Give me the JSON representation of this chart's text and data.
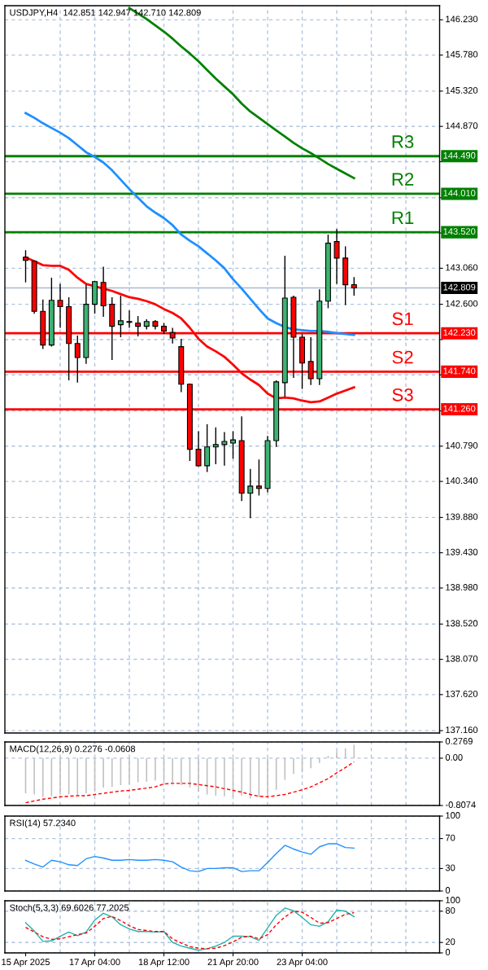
{
  "chart_data": [
    {
      "type": "candlestick",
      "title": "USDJPY,H4  142.851 142.947 142.710 142.809",
      "categories": [
        null,
        null,
        null,
        null,
        null,
        null,
        null,
        null,
        null,
        null,
        null,
        null,
        null,
        null,
        null,
        null,
        null,
        null,
        null,
        null,
        null,
        null,
        null,
        null,
        null,
        null,
        null,
        null,
        null,
        null,
        null,
        null,
        null,
        null,
        null,
        null,
        null,
        null,
        null
      ],
      "ohlc": [
        [
          143.2,
          143.29,
          142.88,
          143.16
        ],
        [
          143.15,
          143.16,
          142.48,
          142.51
        ],
        [
          142.51,
          142.66,
          142.03,
          142.08
        ],
        [
          142.08,
          142.94,
          142.06,
          142.65
        ],
        [
          142.65,
          142.86,
          142.3,
          142.57
        ],
        [
          142.57,
          142.69,
          141.63,
          142.1
        ],
        [
          142.1,
          142.2,
          141.6,
          141.92
        ],
        [
          141.92,
          142.85,
          141.84,
          142.6
        ],
        [
          142.6,
          142.9,
          142.48,
          142.89
        ],
        [
          142.88,
          143.08,
          142.44,
          142.58
        ],
        [
          142.6,
          142.69,
          141.89,
          142.32
        ],
        [
          142.34,
          142.71,
          142.18,
          142.39
        ],
        [
          142.37,
          142.52,
          142.3,
          142.38
        ],
        [
          142.36,
          142.45,
          142.19,
          142.32
        ],
        [
          142.32,
          142.41,
          142.28,
          142.38
        ],
        [
          142.38,
          142.4,
          142.28,
          142.32
        ],
        [
          142.32,
          142.36,
          142.22,
          142.26
        ],
        [
          142.24,
          142.3,
          142.1,
          142.17
        ],
        [
          142.06,
          142.16,
          141.48,
          141.58
        ],
        [
          141.58,
          141.59,
          140.6,
          140.75
        ],
        [
          140.75,
          140.98,
          140.53,
          140.54
        ],
        [
          140.54,
          141.07,
          140.46,
          140.78
        ],
        [
          140.78,
          141.03,
          140.56,
          140.81
        ],
        [
          140.81,
          140.97,
          140.54,
          140.85
        ],
        [
          140.83,
          140.98,
          140.63,
          140.87
        ],
        [
          140.86,
          141.17,
          140.09,
          140.19
        ],
        [
          140.19,
          140.5,
          139.87,
          140.28
        ],
        [
          140.28,
          140.62,
          140.16,
          140.25
        ],
        [
          140.25,
          140.92,
          140.2,
          140.86
        ],
        [
          140.86,
          141.63,
          140.78,
          141.61
        ],
        [
          141.6,
          143.22,
          141.42,
          142.68
        ],
        [
          142.69,
          142.71,
          141.66,
          142.18
        ],
        [
          142.18,
          142.22,
          141.52,
          141.85
        ],
        [
          141.87,
          142.18,
          141.57,
          141.65
        ],
        [
          141.65,
          142.79,
          141.57,
          142.64
        ],
        [
          142.64,
          143.49,
          142.55,
          143.38
        ],
        [
          143.4,
          143.56,
          142.86,
          143.19
        ],
        [
          143.19,
          143.34,
          142.59,
          142.85
        ],
        [
          142.851,
          142.947,
          142.71,
          142.809
        ]
      ],
      "colors": [
        "#ff0000",
        "#ff0000",
        "#ff0000",
        "#3cb371",
        "#ff0000",
        "#ff0000",
        "#ff0000",
        "#3cb371",
        "#3cb371",
        "#ff0000",
        "#ff0000",
        "#3cb371",
        "#3cb371",
        "#ff0000",
        "#3cb371",
        "#ff0000",
        "#ff0000",
        "#ff0000",
        "#ff0000",
        "#ff0000",
        "#ff0000",
        "#3cb371",
        "#3cb371",
        "#3cb371",
        "#3cb371",
        "#ff0000",
        "#3cb371",
        "#ff0000",
        "#3cb371",
        "#3cb371",
        "#3cb371",
        "#ff0000",
        "#ff0000",
        "#ff0000",
        "#3cb371",
        "#3cb371",
        "#ff0000",
        "#ff0000",
        "#ff0000"
      ],
      "series": [
        {
          "type": "line",
          "color": "#008000",
          "values": [
            null,
            null,
            null,
            null,
            null,
            null,
            null,
            null,
            null,
            null,
            null,
            null,
            146.38,
            146.31,
            146.24,
            146.16,
            146.08,
            145.99,
            145.89,
            145.8,
            145.7,
            145.59,
            145.48,
            145.38,
            145.28,
            145.16,
            145.06,
            144.98,
            144.9,
            144.82,
            144.74,
            144.66,
            144.59,
            144.53,
            144.46,
            144.39,
            144.33,
            144.27,
            144.21
          ]
        },
        {
          "type": "line",
          "color": "#1e90ff",
          "values": [
            145.04,
            144.98,
            144.91,
            144.85,
            144.79,
            144.72,
            144.63,
            144.54,
            144.48,
            144.41,
            144.31,
            144.19,
            144.07,
            143.96,
            143.85,
            143.77,
            143.7,
            143.61,
            143.49,
            143.41,
            143.34,
            143.25,
            143.16,
            143.06,
            142.92,
            142.8,
            142.67,
            142.54,
            142.42,
            142.36,
            142.31,
            142.28,
            142.27,
            142.26,
            142.26,
            142.25,
            142.23,
            142.22,
            142.21
          ]
        },
        {
          "type": "line",
          "color": "#ff0000",
          "values": [
            143.2,
            143.15,
            143.1,
            143.09,
            143.09,
            143.04,
            142.94,
            142.86,
            142.83,
            142.8,
            142.77,
            142.73,
            142.69,
            142.67,
            142.64,
            142.6,
            142.54,
            142.49,
            142.42,
            142.3,
            142.16,
            142.06,
            142.0,
            141.93,
            141.83,
            141.72,
            141.64,
            141.57,
            141.46,
            141.4,
            141.41,
            141.4,
            141.37,
            141.35,
            141.36,
            141.41,
            141.46,
            141.5,
            141.54
          ]
        }
      ],
      "ylim": [
        137.13,
        146.41
      ],
      "yticks": [
        {
          "value": 146.23,
          "label": "146.230"
        },
        {
          "value": 145.78,
          "label": "145.780"
        },
        {
          "value": 145.32,
          "label": "145.320"
        },
        {
          "value": 144.87,
          "label": "144.870"
        },
        {
          "value": 144.42,
          "label": null
        },
        {
          "value": 143.96,
          "label": null
        },
        {
          "value": 143.51,
          "label": null
        },
        {
          "value": 143.06,
          "label": "143.060"
        },
        {
          "value": 142.6,
          "label": "142.600"
        },
        {
          "value": 142.15,
          "label": null
        },
        {
          "value": 141.7,
          "label": null
        },
        {
          "value": 141.24,
          "label": null
        },
        {
          "value": 140.79,
          "label": "140.790"
        },
        {
          "value": 140.34,
          "label": "140.340"
        },
        {
          "value": 139.88,
          "label": "139.880"
        },
        {
          "value": 139.43,
          "label": "139.430"
        },
        {
          "value": 138.98,
          "label": "138.980"
        },
        {
          "value": 138.52,
          "label": "138.520"
        },
        {
          "value": 138.07,
          "label": "138.070"
        },
        {
          "value": 137.62,
          "label": "137.620"
        },
        {
          "value": 137.16,
          "label": "137.160"
        }
      ],
      "ref_lines": [
        {
          "axis": "y",
          "value": 144.49,
          "label": "144.490",
          "color": "#008000"
        },
        {
          "axis": "y",
          "value": 144.01,
          "label": "144.010",
          "color": "#008000"
        },
        {
          "axis": "y",
          "value": 143.52,
          "label": "143.520",
          "color": "#008000"
        },
        {
          "axis": "y",
          "value": 142.23,
          "label": "142.230",
          "color": "#ff0000"
        },
        {
          "axis": "y",
          "value": 141.74,
          "label": "141.740",
          "color": "#ff0000"
        },
        {
          "axis": "y",
          "value": 141.26,
          "label": "141.260",
          "color": "#ff0000"
        },
        {
          "axis": "y",
          "value": 142.809,
          "label": "142.809",
          "color": "#a9b8d0"
        }
      ],
      "annotations": [
        {
          "text": "R3",
          "y": 144.49
        },
        {
          "text": "R2",
          "y": 144.01
        },
        {
          "text": "R1",
          "y": 143.52
        },
        {
          "text": "S1",
          "y": 142.23
        },
        {
          "text": "S2",
          "y": 141.74
        },
        {
          "text": "S3",
          "y": 141.26
        }
      ],
      "grid": true,
      "tick_labels": "y"
    },
    {
      "type": "bar",
      "title": "MACD(12,26,9) 0.2276 -0.0608",
      "categories": [
        null,
        null,
        null,
        null,
        null,
        null,
        null,
        null,
        null,
        null,
        null,
        null,
        null,
        null,
        null,
        null,
        null,
        null,
        null,
        null,
        null,
        null,
        null,
        null,
        null,
        null,
        null,
        null,
        null,
        null,
        null,
        null,
        null,
        null,
        null,
        null,
        null,
        null,
        null
      ],
      "series": [
        {
          "type": "bar",
          "color": "#c0c0c0",
          "values": [
            -0.6,
            -0.62,
            -0.66,
            -0.65,
            -0.62,
            -0.62,
            -0.63,
            -0.6,
            -0.55,
            -0.5,
            -0.49,
            -0.46,
            -0.44,
            -0.41,
            -0.4,
            -0.38,
            -0.4,
            -0.42,
            -0.46,
            -0.5,
            -0.57,
            -0.62,
            -0.64,
            -0.65,
            -0.66,
            -0.64,
            -0.69,
            -0.67,
            -0.66,
            -0.54,
            -0.37,
            -0.27,
            -0.24,
            -0.17,
            -0.08,
            0.04,
            0.12,
            0.17,
            0.2276
          ]
        },
        {
          "type": "line",
          "color": "#ff0000",
          "line_style": "dashed",
          "values": [
            -0.76,
            -0.73,
            -0.7,
            -0.68,
            -0.66,
            -0.65,
            -0.64,
            -0.64,
            -0.62,
            -0.6,
            -0.58,
            -0.56,
            -0.55,
            -0.53,
            -0.51,
            -0.49,
            -0.44,
            -0.43,
            -0.43,
            -0.43,
            -0.45,
            -0.47,
            -0.49,
            -0.52,
            -0.55,
            -0.58,
            -0.62,
            -0.65,
            -0.66,
            -0.64,
            -0.62,
            -0.58,
            -0.54,
            -0.49,
            -0.42,
            -0.35,
            -0.25,
            -0.16,
            -0.0608
          ]
        }
      ],
      "ylim": [
        -0.8074,
        0.2769
      ],
      "yticks": [
        0.2769,
        {
          "value": 0,
          "label": "0.00"
        },
        -0.8074
      ],
      "grid": true,
      "tick_labels": "y"
    },
    {
      "type": "line",
      "title": "RSI(14) 57.2340",
      "categories": [
        null,
        null,
        null,
        null,
        null,
        null,
        null,
        null,
        null,
        null,
        null,
        null,
        null,
        null,
        null,
        null,
        null,
        null,
        null,
        null,
        null,
        null,
        null,
        null,
        null,
        null,
        null,
        null,
        null,
        null,
        null,
        null,
        null,
        null,
        null,
        null,
        null,
        null,
        null
      ],
      "series": [
        {
          "color": "#1e90ff",
          "values": [
            41,
            36,
            32,
            41,
            39,
            35,
            34,
            43,
            46,
            44,
            41,
            41,
            42,
            41,
            41,
            42,
            41,
            39,
            32,
            27,
            26,
            30,
            30,
            31,
            31,
            26,
            27,
            27,
            38,
            50,
            61,
            56,
            52,
            49,
            59,
            63,
            63,
            58,
            57.234
          ]
        }
      ],
      "ylim": [
        0,
        100
      ],
      "yticks": [
        100,
        70,
        30,
        0
      ],
      "grid": true,
      "tick_labels": "y"
    },
    {
      "type": "line",
      "title": "Stoch(5,3,3) 69.6026 77.2025",
      "categories": [
        "15 Apr 2025",
        null,
        null,
        null,
        null,
        null,
        null,
        null,
        "17 Apr 04:00",
        null,
        null,
        null,
        null,
        null,
        null,
        null,
        "18 Apr 12:00",
        null,
        null,
        null,
        null,
        null,
        null,
        null,
        "21 Apr 20:00",
        null,
        null,
        null,
        null,
        null,
        null,
        null,
        "23 Apr 04:00",
        null,
        null,
        null,
        null,
        null,
        null
      ],
      "series": [
        {
          "color": "#20b2aa",
          "values": [
            58,
            42,
            22,
            23,
            32,
            40,
            33,
            40,
            63,
            76,
            69,
            54,
            46,
            41,
            41,
            40,
            41,
            20,
            13,
            9,
            5,
            8,
            13,
            20,
            32,
            32,
            31,
            24,
            48,
            72,
            86,
            81,
            68,
            54,
            51,
            60,
            82,
            80,
            69.6026
          ]
        },
        {
          "color": "#ff0000",
          "line_style": "dashed",
          "values": [
            49,
            40,
            31,
            26,
            27,
            31,
            35,
            38,
            51,
            66,
            70,
            62,
            52,
            45,
            43,
            41,
            41,
            27,
            19,
            12,
            9,
            8,
            9,
            14,
            21,
            30,
            32,
            27,
            35,
            54,
            69,
            80,
            78,
            68,
            57,
            58,
            66,
            74,
            77.2025
          ]
        }
      ],
      "ylim": [
        0,
        100
      ],
      "yticks": [
        100,
        80,
        20,
        0
      ],
      "grid": true
    }
  ]
}
